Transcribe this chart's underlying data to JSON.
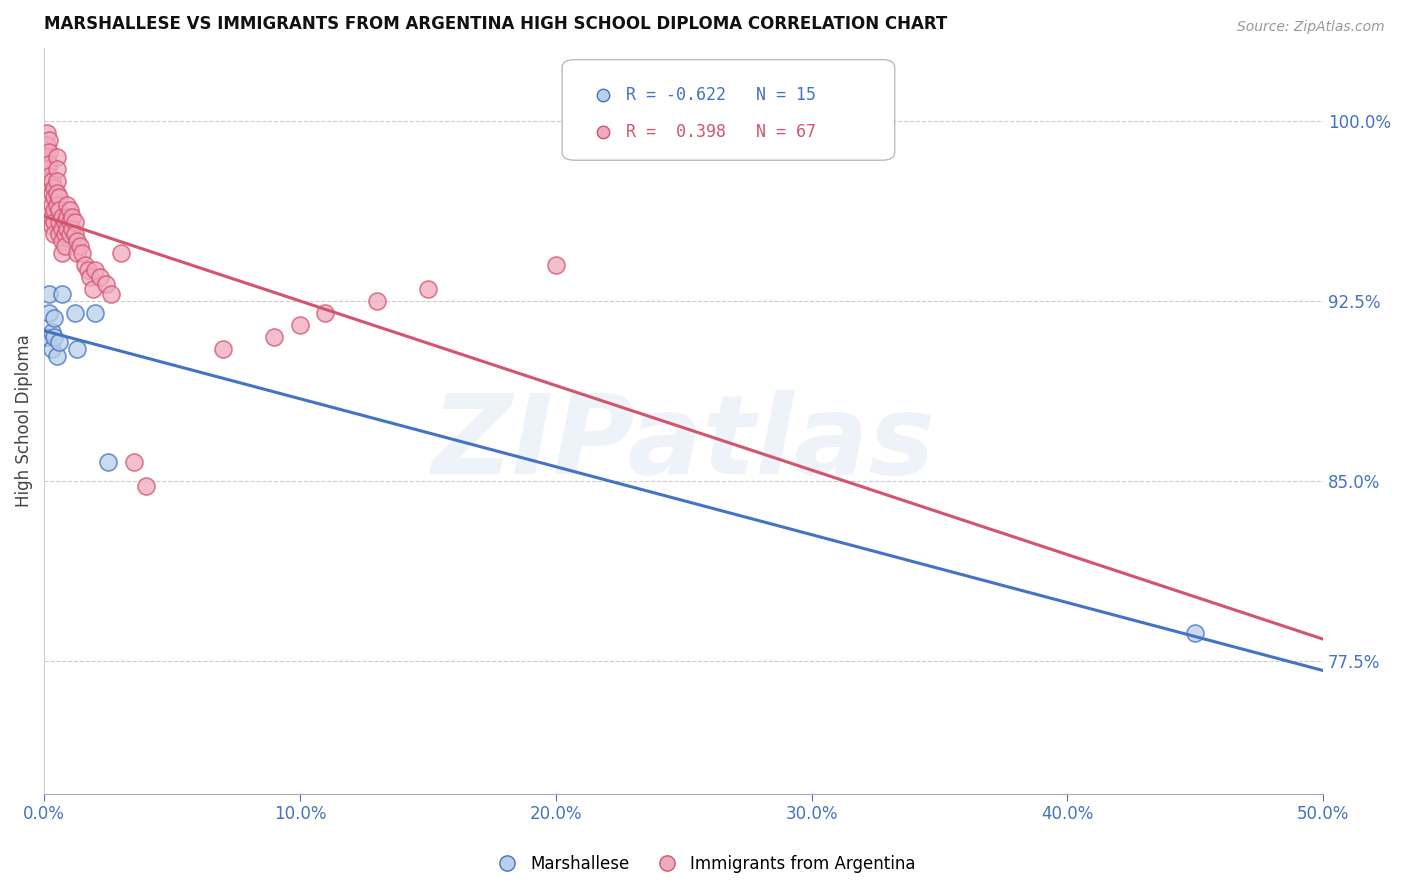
{
  "title": "MARSHALLESE VS IMMIGRANTS FROM ARGENTINA HIGH SCHOOL DIPLOMA CORRELATION CHART",
  "source": "Source: ZipAtlas.com",
  "ylabel": "High School Diploma",
  "watermark": "ZIPatlas",
  "blue_label": "Marshallese",
  "pink_label": "Immigrants from Argentina",
  "blue_R": -0.622,
  "blue_N": 15,
  "pink_R": 0.398,
  "pink_N": 67,
  "blue_color": "#b8d0e8",
  "blue_line_color": "#4472c4",
  "pink_color": "#f0aabf",
  "pink_line_color": "#d4546e",
  "axis_label_color": "#4472c4",
  "right_ytick_values": [
    0.775,
    0.85,
    0.925,
    1.0
  ],
  "xlim": [
    0.0,
    0.5
  ],
  "ylim": [
    0.72,
    1.03
  ],
  "blue_x": [
    0.001,
    0.002,
    0.002,
    0.003,
    0.003,
    0.004,
    0.004,
    0.005,
    0.006,
    0.007,
    0.012,
    0.013,
    0.02,
    0.025,
    0.45
  ],
  "blue_y": [
    0.91,
    0.928,
    0.92,
    0.912,
    0.905,
    0.918,
    0.91,
    0.902,
    0.908,
    0.928,
    0.92,
    0.905,
    0.92,
    0.858,
    0.787
  ],
  "pink_x": [
    0.001,
    0.001,
    0.001,
    0.001,
    0.001,
    0.002,
    0.002,
    0.002,
    0.002,
    0.003,
    0.003,
    0.003,
    0.003,
    0.003,
    0.004,
    0.004,
    0.004,
    0.004,
    0.004,
    0.005,
    0.005,
    0.005,
    0.005,
    0.005,
    0.006,
    0.006,
    0.006,
    0.006,
    0.007,
    0.007,
    0.007,
    0.007,
    0.008,
    0.008,
    0.008,
    0.009,
    0.009,
    0.009,
    0.01,
    0.01,
    0.01,
    0.011,
    0.011,
    0.012,
    0.012,
    0.013,
    0.013,
    0.014,
    0.015,
    0.016,
    0.017,
    0.018,
    0.019,
    0.02,
    0.022,
    0.024,
    0.026,
    0.03,
    0.035,
    0.04,
    0.07,
    0.09,
    0.1,
    0.11,
    0.13,
    0.15,
    0.2
  ],
  "pink_y": [
    0.995,
    0.99,
    0.985,
    0.98,
    0.975,
    0.992,
    0.987,
    0.982,
    0.977,
    0.975,
    0.97,
    0.965,
    0.96,
    0.956,
    0.972,
    0.968,
    0.963,
    0.958,
    0.953,
    0.985,
    0.98,
    0.975,
    0.97,
    0.965,
    0.968,
    0.963,
    0.958,
    0.953,
    0.96,
    0.955,
    0.95,
    0.945,
    0.958,
    0.953,
    0.948,
    0.965,
    0.96,
    0.955,
    0.963,
    0.958,
    0.953,
    0.96,
    0.955,
    0.958,
    0.953,
    0.95,
    0.945,
    0.948,
    0.945,
    0.94,
    0.938,
    0.935,
    0.93,
    0.938,
    0.935,
    0.932,
    0.928,
    0.945,
    0.858,
    0.848,
    0.905,
    0.91,
    0.915,
    0.92,
    0.925,
    0.93,
    0.94
  ]
}
